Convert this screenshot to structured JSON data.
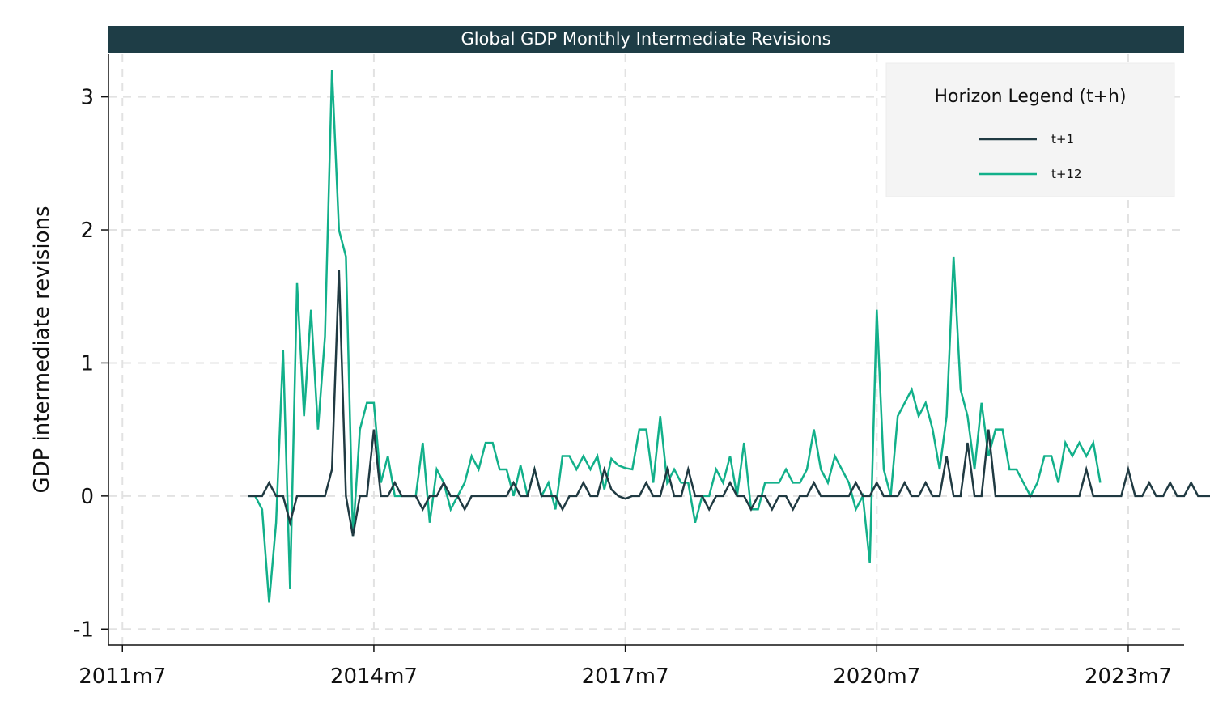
{
  "chart_data": {
    "type": "line",
    "title": "Global GDP Monthly Intermediate Revisions",
    "ylabel": "GDP intermediate revisions",
    "xlabel": "",
    "x_start": "2011m7",
    "x_ticks": [
      "2011m7",
      "2014m7",
      "2017m7",
      "2020m7",
      "2023m7"
    ],
    "y_ticks": [
      -1,
      0,
      1,
      2,
      3
    ],
    "xlim": [
      "2011m5",
      "2024m3"
    ],
    "ylim": [
      -1.12,
      3.32
    ],
    "grid": true,
    "legend": {
      "title": "Horizon Legend (t+h)",
      "position": "top-right"
    },
    "colors": {
      "title_bar": "#1e3d46",
      "t1": "#203a42",
      "t12": "#12b08a",
      "grid": "#e2e2e2",
      "legend_bg": "#f4f4f4"
    },
    "series": [
      {
        "name": "t+1",
        "start": "2013m1",
        "values": [
          0,
          0,
          0,
          0.1,
          0,
          0,
          -0.2,
          0,
          0,
          0,
          0,
          0,
          0.2,
          1.7,
          0,
          -0.3,
          0,
          0,
          0.5,
          0,
          0,
          0.1,
          0,
          0,
          0,
          -0.1,
          0,
          0,
          0.1,
          0,
          0,
          -0.1,
          0,
          0,
          0,
          0,
          0,
          0,
          0.1,
          0,
          0,
          0.2,
          0,
          0,
          0,
          -0.1,
          0,
          0,
          0.1,
          0,
          0,
          0.2,
          0.05,
          0,
          -0.02,
          0,
          0,
          0.1,
          0,
          0,
          0.2,
          0,
          0,
          0.2,
          0,
          0,
          -0.1,
          0,
          0,
          0.1,
          0,
          0,
          -0.1,
          0,
          0,
          -0.1,
          0,
          0,
          -0.1,
          0,
          0,
          0.1,
          0,
          0,
          0,
          0,
          0,
          0.1,
          0,
          0,
          0.1,
          0,
          0,
          0,
          0.1,
          0,
          0,
          0.1,
          0,
          0,
          0.3,
          0,
          0,
          0.4,
          0,
          0,
          0.5,
          0,
          0,
          0,
          0,
          0,
          0,
          0,
          0,
          0,
          0,
          0,
          0,
          0,
          0.2,
          0,
          0,
          0,
          0,
          0,
          0.2,
          0,
          0,
          0.1,
          0,
          0,
          0.1,
          0,
          0,
          0.1,
          0,
          0,
          0
        ]
      },
      {
        "name": "t+12",
        "start": "2013m1",
        "values": [
          0,
          0,
          -0.1,
          -0.8,
          -0.2,
          1.1,
          -0.7,
          1.6,
          0.6,
          1.4,
          0.5,
          1.2,
          3.2,
          2.0,
          1.8,
          -0.3,
          0.5,
          0.7,
          0.7,
          0.1,
          0.3,
          0,
          0,
          0,
          0,
          0.4,
          -0.2,
          0.2,
          0.1,
          -0.1,
          0,
          0.1,
          0.3,
          0.2,
          0.4,
          0.4,
          0.2,
          0.2,
          0,
          0.23,
          0,
          0.2,
          0,
          0.1,
          -0.1,
          0.3,
          0.3,
          0.2,
          0.3,
          0.2,
          0.3,
          0.05,
          0.28,
          0.23,
          0.21,
          0.2,
          0.5,
          0.5,
          0.1,
          0.6,
          0.1,
          0.2,
          0.1,
          0.1,
          -0.2,
          0,
          0,
          0.2,
          0.1,
          0.3,
          0,
          0.4,
          -0.1,
          -0.1,
          0.1,
          0.1,
          0.1,
          0.2,
          0.1,
          0.1,
          0.2,
          0.5,
          0.2,
          0.1,
          0.3,
          0.2,
          0.1,
          -0.1,
          0,
          -0.5,
          1.4,
          0.2,
          0,
          0.6,
          0.7,
          0.8,
          0.6,
          0.7,
          0.5,
          0.2,
          0.6,
          1.8,
          0.8,
          0.6,
          0.2,
          0.7,
          0.3,
          0.5,
          0.5,
          0.2,
          0.2,
          0.1,
          0,
          0.1,
          0.3,
          0.3,
          0.1,
          0.4,
          0.3,
          0.4,
          0.3,
          0.4,
          0.1
        ]
      }
    ]
  }
}
